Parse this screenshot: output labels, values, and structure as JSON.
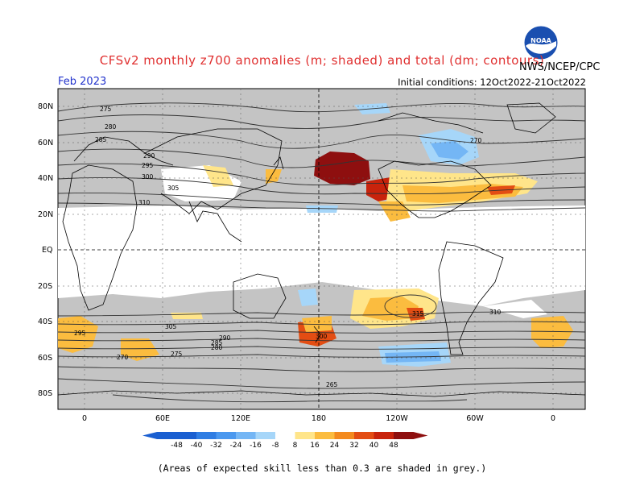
{
  "title": "CFSv2 monthly z700 anomalies (m; shaded) and total (dm; contours)",
  "valid_month": "Feb 2023",
  "initial_conditions": "Initial conditions: 12Oct2022-21Oct2022",
  "agency": "NWS/NCEP/CPC",
  "logo_text": "NOAA",
  "footnote": "(Areas of expected skill less than 0.3 are shaded in grey.)",
  "latitude_labels": [
    "80N",
    "60N",
    "40N",
    "20N",
    "EQ",
    "20S",
    "40S",
    "60S",
    "80S"
  ],
  "longitude_labels": [
    "0",
    "60E",
    "120E",
    "180",
    "120W",
    "60W",
    "0"
  ],
  "colorbar": {
    "values": [
      "-48",
      "-40",
      "-32",
      "-24",
      "-16",
      "-8",
      "8",
      "16",
      "24",
      "32",
      "40",
      "48"
    ],
    "colors": [
      "#1a5fd1",
      "#2f7de3",
      "#4a98ef",
      "#74b6f5",
      "#a6d6f9",
      "#ffffff",
      "#ffe58a",
      "#fbbc3f",
      "#f38a1e",
      "#e34d13",
      "#c8230c",
      "#8e0f0f"
    ]
  },
  "contour_labels": [
    "275",
    "280",
    "285",
    "290",
    "295",
    "300",
    "305",
    "310",
    "315",
    "270",
    "265",
    "300",
    "310",
    "305",
    "295",
    "290",
    "285",
    "280",
    "275",
    "270"
  ],
  "colors": {
    "skill_grey": "#c4c4c4",
    "ocean_white": "#ffffff",
    "coast": "#000000",
    "title_red": "#e03030",
    "date_blue": "#2233cc"
  }
}
